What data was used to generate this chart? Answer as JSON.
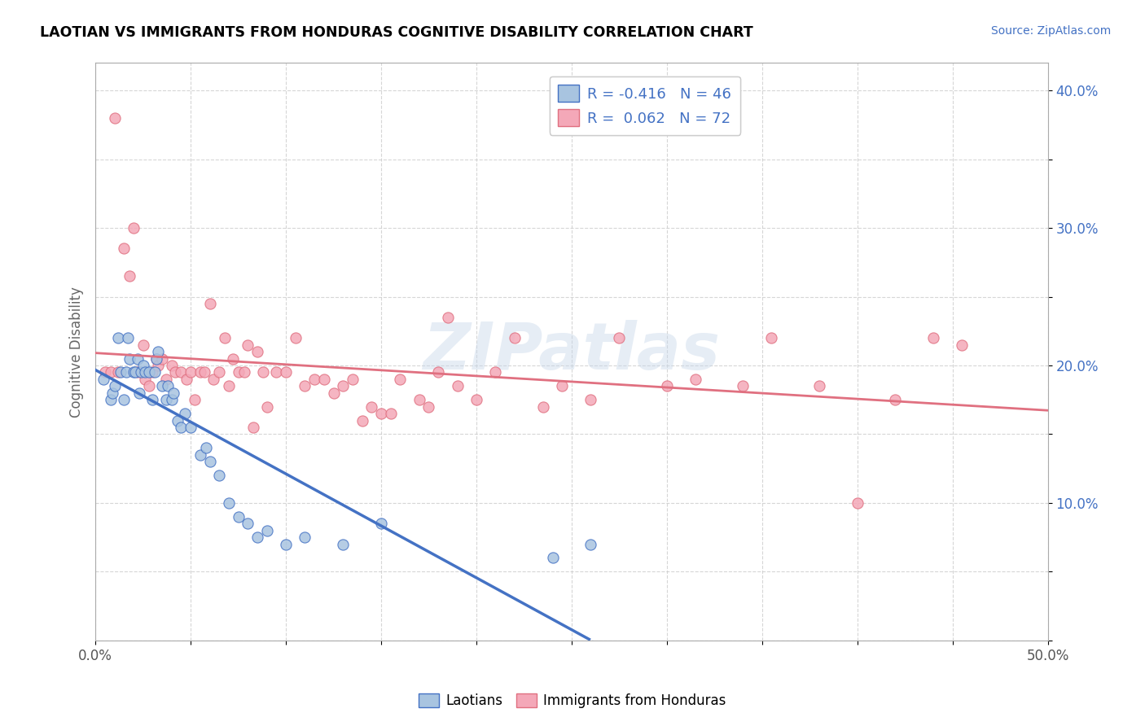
{
  "title": "LAOTIAN VS IMMIGRANTS FROM HONDURAS COGNITIVE DISABILITY CORRELATION CHART",
  "source_text": "Source: ZipAtlas.com",
  "ylabel": "Cognitive Disability",
  "xlim": [
    0.0,
    0.5
  ],
  "ylim": [
    0.0,
    0.42
  ],
  "xticks": [
    0.0,
    0.05,
    0.1,
    0.15,
    0.2,
    0.25,
    0.3,
    0.35,
    0.4,
    0.45,
    0.5
  ],
  "xtick_labels": [
    "0.0%",
    "",
    "",
    "",
    "",
    "",
    "",
    "",
    "",
    "",
    "50.0%"
  ],
  "yticks": [
    0.0,
    0.05,
    0.1,
    0.15,
    0.2,
    0.25,
    0.3,
    0.35,
    0.4
  ],
  "ytick_labels": [
    "",
    "",
    "10.0%",
    "",
    "20.0%",
    "",
    "30.0%",
    "",
    "40.0%"
  ],
  "laotian_color": "#a8c4e0",
  "honduras_color": "#f4a8b8",
  "laotian_line_color": "#4472c4",
  "honduras_line_color": "#e07080",
  "watermark_text": "ZIPatlas",
  "laotian_x": [
    0.004,
    0.008,
    0.009,
    0.01,
    0.012,
    0.013,
    0.015,
    0.016,
    0.017,
    0.018,
    0.02,
    0.021,
    0.022,
    0.023,
    0.024,
    0.025,
    0.026,
    0.028,
    0.03,
    0.031,
    0.032,
    0.033,
    0.035,
    0.037,
    0.038,
    0.04,
    0.041,
    0.043,
    0.045,
    0.047,
    0.05,
    0.055,
    0.058,
    0.06,
    0.065,
    0.07,
    0.075,
    0.08,
    0.085,
    0.09,
    0.1,
    0.11,
    0.13,
    0.15,
    0.24,
    0.26
  ],
  "laotian_y": [
    0.19,
    0.175,
    0.18,
    0.185,
    0.22,
    0.195,
    0.175,
    0.195,
    0.22,
    0.205,
    0.195,
    0.195,
    0.205,
    0.18,
    0.195,
    0.2,
    0.195,
    0.195,
    0.175,
    0.195,
    0.205,
    0.21,
    0.185,
    0.175,
    0.185,
    0.175,
    0.18,
    0.16,
    0.155,
    0.165,
    0.155,
    0.135,
    0.14,
    0.13,
    0.12,
    0.1,
    0.09,
    0.085,
    0.075,
    0.08,
    0.07,
    0.075,
    0.07,
    0.085,
    0.06,
    0.07
  ],
  "honduras_x": [
    0.005,
    0.008,
    0.01,
    0.012,
    0.015,
    0.018,
    0.02,
    0.022,
    0.025,
    0.026,
    0.028,
    0.03,
    0.032,
    0.033,
    0.035,
    0.037,
    0.04,
    0.042,
    0.045,
    0.048,
    0.05,
    0.052,
    0.055,
    0.057,
    0.06,
    0.062,
    0.065,
    0.068,
    0.07,
    0.072,
    0.075,
    0.078,
    0.08,
    0.083,
    0.085,
    0.088,
    0.09,
    0.095,
    0.1,
    0.105,
    0.11,
    0.115,
    0.12,
    0.125,
    0.13,
    0.135,
    0.14,
    0.145,
    0.15,
    0.155,
    0.16,
    0.17,
    0.175,
    0.18,
    0.185,
    0.19,
    0.2,
    0.21,
    0.22,
    0.235,
    0.245,
    0.26,
    0.275,
    0.3,
    0.315,
    0.34,
    0.355,
    0.38,
    0.4,
    0.42,
    0.44,
    0.455
  ],
  "honduras_y": [
    0.195,
    0.195,
    0.38,
    0.195,
    0.285,
    0.265,
    0.3,
    0.195,
    0.215,
    0.19,
    0.185,
    0.195,
    0.205,
    0.2,
    0.205,
    0.19,
    0.2,
    0.195,
    0.195,
    0.19,
    0.195,
    0.175,
    0.195,
    0.195,
    0.245,
    0.19,
    0.195,
    0.22,
    0.185,
    0.205,
    0.195,
    0.195,
    0.215,
    0.155,
    0.21,
    0.195,
    0.17,
    0.195,
    0.195,
    0.22,
    0.185,
    0.19,
    0.19,
    0.18,
    0.185,
    0.19,
    0.16,
    0.17,
    0.165,
    0.165,
    0.19,
    0.175,
    0.17,
    0.195,
    0.235,
    0.185,
    0.175,
    0.195,
    0.22,
    0.17,
    0.185,
    0.175,
    0.22,
    0.185,
    0.19,
    0.185,
    0.22,
    0.185,
    0.1,
    0.175,
    0.22,
    0.215
  ]
}
